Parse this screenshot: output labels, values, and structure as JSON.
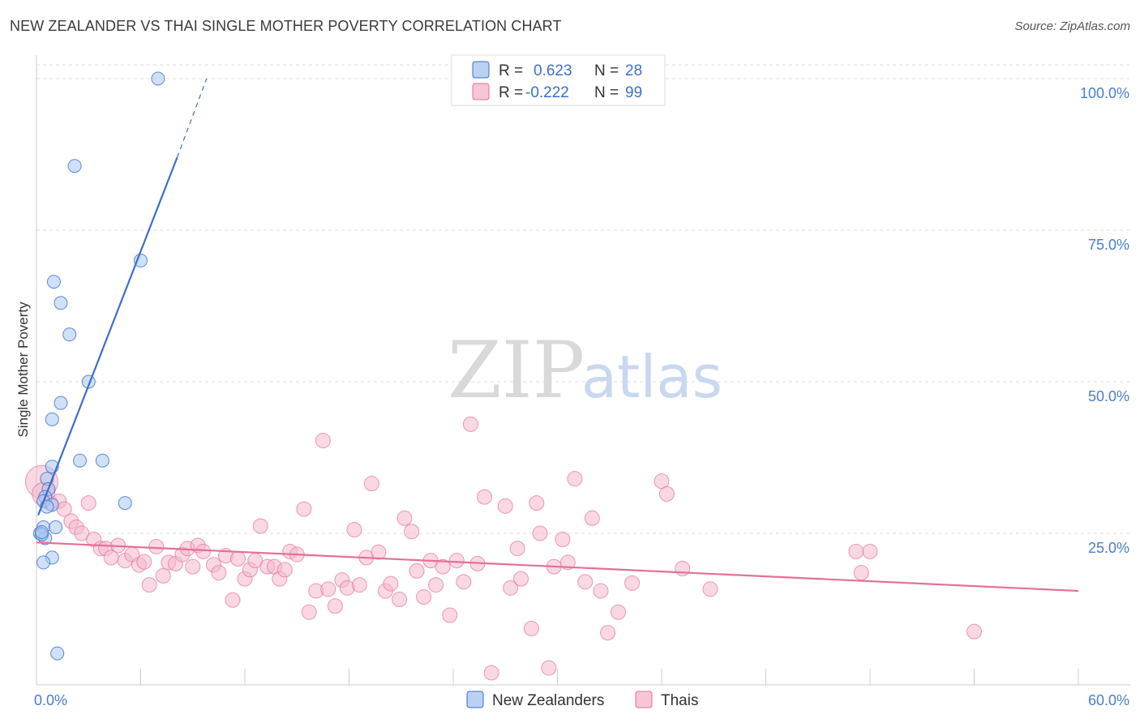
{
  "title": "NEW ZEALANDER VS THAI SINGLE MOTHER POVERTY CORRELATION CHART",
  "source": "Source: ZipAtlas.com",
  "watermark": {
    "zip": "ZIP",
    "atlas": "atlas"
  },
  "colors": {
    "blue": "#3b6fc8",
    "blue_fill": "#a9c6f0",
    "pink": "#e46f9a",
    "pink_fill": "#f4b8cc",
    "grid": "#dddddd"
  },
  "chart_data": {
    "type": "scatter",
    "title": "NEW ZEALANDER VS THAI SINGLE MOTHER POVERTY CORRELATION CHART",
    "xlabel": "",
    "ylabel": "Single Mother Poverty",
    "xlim": [
      0,
      60
    ],
    "ylim": [
      0,
      102
    ],
    "x_tick_labels": [
      "0.0%",
      "60.0%"
    ],
    "y_ticks": [
      25,
      50,
      75,
      100
    ],
    "y_tick_labels": [
      "25.0%",
      "50.0%",
      "75.0%",
      "100.0%"
    ],
    "grid": true,
    "legend": {
      "placement": "top-center",
      "entries": [
        {
          "r_label": "R =",
          "r_value": "0.623",
          "n_label": "N =",
          "n_value": "28"
        },
        {
          "r_label": "R =",
          "r_value": "-0.222",
          "n_label": "N =",
          "n_value": "99"
        }
      ]
    },
    "series": [
      {
        "name": "New Zealanders",
        "color": "#3b6fc8",
        "trend": {
          "x0": 0.1,
          "y0": 28.0,
          "x1": 8.1,
          "y1": 87.0,
          "x1_dash": 9.8,
          "y1_dash": 100.0
        },
        "points": [
          [
            7.0,
            100.0
          ],
          [
            2.2,
            85.6
          ],
          [
            6.0,
            70.0
          ],
          [
            1.0,
            66.5
          ],
          [
            1.4,
            63.0
          ],
          [
            1.9,
            57.8
          ],
          [
            3.0,
            50.0
          ],
          [
            1.4,
            46.5
          ],
          [
            0.9,
            43.8
          ],
          [
            2.5,
            37.0
          ],
          [
            3.8,
            37.0
          ],
          [
            0.9,
            36.0
          ],
          [
            0.6,
            34.0
          ],
          [
            0.7,
            32.3
          ],
          [
            0.5,
            31.0
          ],
          [
            0.4,
            30.3
          ],
          [
            0.9,
            29.7
          ],
          [
            0.6,
            29.4
          ],
          [
            5.1,
            30.0
          ],
          [
            0.4,
            26.0
          ],
          [
            1.1,
            26.0
          ],
          [
            0.2,
            25.0
          ],
          [
            0.5,
            24.2
          ],
          [
            0.3,
            24.8
          ],
          [
            0.9,
            21.0
          ],
          [
            0.4,
            20.2
          ],
          [
            1.2,
            5.2
          ],
          [
            0.3,
            25.2
          ]
        ]
      },
      {
        "name": "Thais",
        "color": "#e46f9a",
        "trend": {
          "x0": 0.0,
          "y0": 23.5,
          "x1": 60.0,
          "y1": 15.5
        },
        "points": [
          [
            0.3,
            33.5
          ],
          [
            0.4,
            31.5
          ],
          [
            0.8,
            30.0
          ],
          [
            1.3,
            30.3
          ],
          [
            1.6,
            29.0
          ],
          [
            3.0,
            30.0
          ],
          [
            2.0,
            27.0
          ],
          [
            2.3,
            26.0
          ],
          [
            2.6,
            25.0
          ],
          [
            3.3,
            24.0
          ],
          [
            3.7,
            22.5
          ],
          [
            4.0,
            22.5
          ],
          [
            4.3,
            21.0
          ],
          [
            4.7,
            23.0
          ],
          [
            5.1,
            20.5
          ],
          [
            5.5,
            21.5
          ],
          [
            5.9,
            19.8
          ],
          [
            6.2,
            20.3
          ],
          [
            6.5,
            16.5
          ],
          [
            6.9,
            22.8
          ],
          [
            7.3,
            18.0
          ],
          [
            7.6,
            20.2
          ],
          [
            8.0,
            20.0
          ],
          [
            8.4,
            21.5
          ],
          [
            8.7,
            22.5
          ],
          [
            9.0,
            19.5
          ],
          [
            9.3,
            23.0
          ],
          [
            9.6,
            22.0
          ],
          [
            10.2,
            19.8
          ],
          [
            10.5,
            18.5
          ],
          [
            10.9,
            21.3
          ],
          [
            11.3,
            14.0
          ],
          [
            11.6,
            20.8
          ],
          [
            12.0,
            17.5
          ],
          [
            12.3,
            19.0
          ],
          [
            12.6,
            20.5
          ],
          [
            12.9,
            26.2
          ],
          [
            13.3,
            19.5
          ],
          [
            13.7,
            19.5
          ],
          [
            14.0,
            17.5
          ],
          [
            14.3,
            19.0
          ],
          [
            14.6,
            22.0
          ],
          [
            15.0,
            21.5
          ],
          [
            15.4,
            29.0
          ],
          [
            15.7,
            12.0
          ],
          [
            16.1,
            15.5
          ],
          [
            16.5,
            40.3
          ],
          [
            16.8,
            15.8
          ],
          [
            17.2,
            13.0
          ],
          [
            17.6,
            17.3
          ],
          [
            17.9,
            16.0
          ],
          [
            18.3,
            25.6
          ],
          [
            18.6,
            16.5
          ],
          [
            19.0,
            21.0
          ],
          [
            19.3,
            33.2
          ],
          [
            19.7,
            21.9
          ],
          [
            20.1,
            15.5
          ],
          [
            20.4,
            16.7
          ],
          [
            20.9,
            14.1
          ],
          [
            21.2,
            27.5
          ],
          [
            21.6,
            25.3
          ],
          [
            21.9,
            18.8
          ],
          [
            22.3,
            14.5
          ],
          [
            22.7,
            20.5
          ],
          [
            23.0,
            16.5
          ],
          [
            23.4,
            19.5
          ],
          [
            23.8,
            11.5
          ],
          [
            24.2,
            20.5
          ],
          [
            24.6,
            17.0
          ],
          [
            25.0,
            43.0
          ],
          [
            25.4,
            20.0
          ],
          [
            25.8,
            31.0
          ],
          [
            26.2,
            2.0
          ],
          [
            27.0,
            29.5
          ],
          [
            27.3,
            16.0
          ],
          [
            27.7,
            22.5
          ],
          [
            27.9,
            17.5
          ],
          [
            28.5,
            9.3
          ],
          [
            28.8,
            30.0
          ],
          [
            29.0,
            25.0
          ],
          [
            29.5,
            2.8
          ],
          [
            29.8,
            19.5
          ],
          [
            30.3,
            24.0
          ],
          [
            30.6,
            20.2
          ],
          [
            31.0,
            34.0
          ],
          [
            31.6,
            17.0
          ],
          [
            32.0,
            27.5
          ],
          [
            32.5,
            15.5
          ],
          [
            32.9,
            8.6
          ],
          [
            33.5,
            12.0
          ],
          [
            34.3,
            16.8
          ],
          [
            36.0,
            33.6
          ],
          [
            36.3,
            31.5
          ],
          [
            37.2,
            19.2
          ],
          [
            38.8,
            15.8
          ],
          [
            47.2,
            22.0
          ],
          [
            47.5,
            18.5
          ],
          [
            48.0,
            22.0
          ],
          [
            54.0,
            8.8
          ]
        ]
      }
    ]
  },
  "bottom_legend": [
    {
      "label": "New Zealanders"
    },
    {
      "label": "Thais"
    }
  ]
}
